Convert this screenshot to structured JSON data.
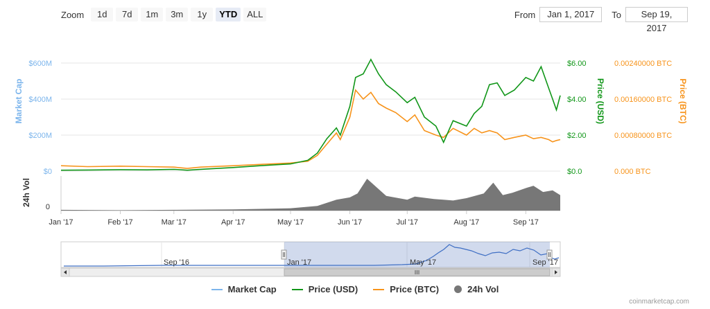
{
  "toolbar": {
    "zoom_label": "Zoom",
    "buttons": [
      "1d",
      "7d",
      "1m",
      "3m",
      "1y",
      "YTD",
      "ALL"
    ],
    "active": "YTD",
    "from_label": "From",
    "from_value": "Jan 1, 2017",
    "to_label": "To",
    "to_value": "Sep 19, 2017"
  },
  "legend": [
    {
      "name": "Market Cap",
      "color": "#7cb5ec",
      "kind": "line"
    },
    {
      "name": "Price (USD)",
      "color": "#109618",
      "kind": "line"
    },
    {
      "name": "Price (BTC)",
      "color": "#f7931a",
      "kind": "line"
    },
    {
      "name": "24h Vol",
      "color": "#777777",
      "kind": "dot"
    }
  ],
  "credit": "coinmarketcap.com",
  "chart_data": {
    "type": "line",
    "x_ticks": [
      "Jan '17",
      "Feb '17",
      "Mar '17",
      "Apr '17",
      "May '17",
      "Jun '17",
      "Jul '17",
      "Aug '17",
      "Sep '17"
    ],
    "axes": {
      "market_cap": {
        "label": "Market Cap",
        "ticks": [
          "$0",
          "$200M",
          "$400M",
          "$600M"
        ],
        "range": [
          0,
          600000000
        ],
        "color": "#7cb5ec"
      },
      "price_usd": {
        "label": "Price (USD)",
        "ticks": [
          "$0.0",
          "$2.00",
          "$4.00",
          "$6.00"
        ],
        "range": [
          0,
          6
        ],
        "color": "#109618"
      },
      "price_btc": {
        "label": "Price (BTC)",
        "ticks": [
          "0.000 BTC",
          "0.00080000 BTC",
          "0.00160000 BTC",
          "0.00240000 BTC"
        ],
        "range": [
          0,
          0.0024
        ],
        "color": "#f7931a"
      },
      "volume": {
        "label": "24h Vol",
        "ticks": [
          "0"
        ]
      }
    },
    "series": [
      {
        "name": "Price (USD)",
        "color": "#109618",
        "dates": [
          "2017-01-01",
          "2017-01-15",
          "2017-02-01",
          "2017-02-15",
          "2017-03-01",
          "2017-03-08",
          "2017-03-15",
          "2017-04-01",
          "2017-04-15",
          "2017-05-01",
          "2017-05-10",
          "2017-05-15",
          "2017-05-20",
          "2017-05-25",
          "2017-05-27",
          "2017-06-01",
          "2017-06-04",
          "2017-06-08",
          "2017-06-12",
          "2017-06-16",
          "2017-06-20",
          "2017-06-25",
          "2017-07-01",
          "2017-07-05",
          "2017-07-10",
          "2017-07-16",
          "2017-07-20",
          "2017-07-25",
          "2017-08-01",
          "2017-08-05",
          "2017-08-09",
          "2017-08-13",
          "2017-08-17",
          "2017-08-21",
          "2017-08-26",
          "2017-09-01",
          "2017-09-05",
          "2017-09-09",
          "2017-09-13",
          "2017-09-15",
          "2017-09-17",
          "2017-09-19"
        ],
        "values": [
          0.05,
          0.06,
          0.08,
          0.07,
          0.1,
          0.05,
          0.1,
          0.2,
          0.3,
          0.4,
          0.6,
          1.0,
          1.8,
          2.4,
          2.0,
          3.6,
          5.2,
          5.4,
          6.2,
          5.4,
          4.8,
          4.4,
          3.8,
          4.1,
          3.0,
          2.5,
          1.6,
          2.8,
          2.5,
          3.2,
          3.6,
          4.8,
          4.9,
          4.2,
          4.5,
          5.2,
          5.0,
          5.8,
          4.6,
          4.0,
          3.4,
          4.2
        ]
      },
      {
        "name": "Price (BTC)",
        "color": "#f7931a",
        "dates": [
          "2017-01-01",
          "2017-01-15",
          "2017-02-01",
          "2017-02-15",
          "2017-03-01",
          "2017-03-08",
          "2017-03-15",
          "2017-04-01",
          "2017-04-15",
          "2017-05-01",
          "2017-05-10",
          "2017-05-15",
          "2017-05-20",
          "2017-05-25",
          "2017-05-27",
          "2017-06-01",
          "2017-06-04",
          "2017-06-08",
          "2017-06-12",
          "2017-06-16",
          "2017-06-20",
          "2017-06-25",
          "2017-07-01",
          "2017-07-05",
          "2017-07-10",
          "2017-07-16",
          "2017-07-20",
          "2017-07-25",
          "2017-08-01",
          "2017-08-05",
          "2017-08-09",
          "2017-08-13",
          "2017-08-17",
          "2017-08-21",
          "2017-08-26",
          "2017-09-01",
          "2017-09-05",
          "2017-09-09",
          "2017-09-13",
          "2017-09-15",
          "2017-09-17",
          "2017-09-19"
        ],
        "values": [
          0.00012,
          0.0001,
          0.00011,
          0.0001,
          9e-05,
          6e-05,
          9e-05,
          0.00012,
          0.00015,
          0.00018,
          0.00022,
          0.00035,
          0.0006,
          0.00085,
          0.0007,
          0.0012,
          0.0018,
          0.0016,
          0.00175,
          0.0015,
          0.0014,
          0.0013,
          0.0011,
          0.00125,
          0.0009,
          0.0008,
          0.00075,
          0.00095,
          0.0008,
          0.00095,
          0.00085,
          0.0009,
          0.00085,
          0.0007,
          0.00075,
          0.0008,
          0.00072,
          0.00075,
          0.0007,
          0.00065,
          0.00068,
          0.0007
        ]
      },
      {
        "name": "24h Vol",
        "color": "#777777",
        "dates": [
          "2017-01-01",
          "2017-02-01",
          "2017-03-01",
          "2017-04-01",
          "2017-04-20",
          "2017-05-01",
          "2017-05-15",
          "2017-05-25",
          "2017-06-01",
          "2017-06-05",
          "2017-06-10",
          "2017-06-20",
          "2017-07-01",
          "2017-07-05",
          "2017-07-15",
          "2017-07-25",
          "2017-08-01",
          "2017-08-10",
          "2017-08-15",
          "2017-08-20",
          "2017-08-25",
          "2017-09-01",
          "2017-09-05",
          "2017-09-10",
          "2017-09-15",
          "2017-09-19"
        ],
        "values": [
          2,
          1,
          2,
          3,
          5,
          6,
          12,
          28,
          34,
          44,
          82,
          38,
          28,
          36,
          30,
          26,
          32,
          44,
          72,
          40,
          46,
          58,
          64,
          48,
          52,
          40
        ]
      }
    ]
  }
}
